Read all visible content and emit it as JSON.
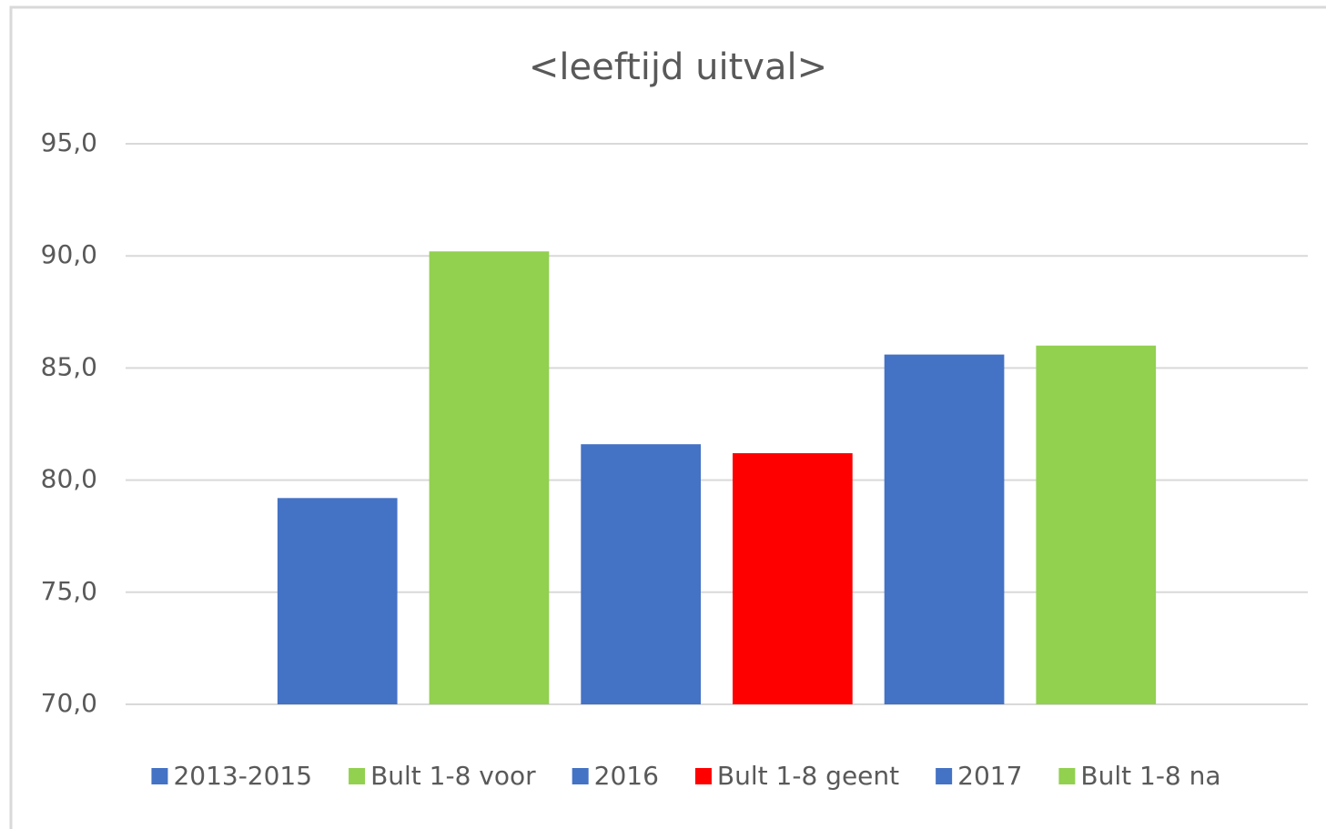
{
  "chart_data": {
    "type": "bar",
    "title": "<leeftijd uitval>",
    "categories": [
      null
    ],
    "series": [
      {
        "name": "2013-2015",
        "color": "#4472c4",
        "values": [
          79.2
        ]
      },
      {
        "name": "Bult 1-8 voor",
        "color": "#92d050",
        "values": [
          90.2
        ]
      },
      {
        "name": "2016",
        "color": "#4472c4",
        "values": [
          81.6
        ]
      },
      {
        "name": "Bult 1-8 geent",
        "color": "#ff0000",
        "values": [
          81.2
        ]
      },
      {
        "name": "2017",
        "color": "#4472c4",
        "values": [
          85.6
        ]
      },
      {
        "name": "Bult 1-8 na",
        "color": "#92d050",
        "values": [
          86.0
        ]
      }
    ],
    "ylim": [
      70,
      95
    ],
    "yticks": [
      {
        "value": 70,
        "label": "70,0"
      },
      {
        "value": 75,
        "label": "75,0"
      },
      {
        "value": 80,
        "label": "80,0"
      },
      {
        "value": 85,
        "label": "85,0"
      },
      {
        "value": 90,
        "label": "90,0"
      },
      {
        "value": 95,
        "label": "95,0"
      }
    ],
    "grid": true,
    "legend": "bottom"
  }
}
